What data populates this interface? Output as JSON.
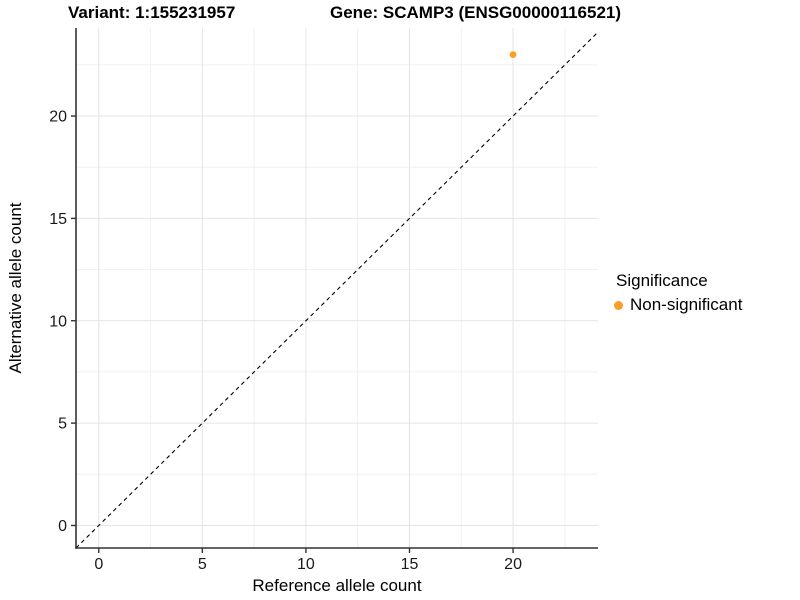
{
  "chart_data": {
    "type": "scatter",
    "title_left": "Variant: 1:155231957",
    "title_right": "Gene: SCAMP3 (ENSG00000116521)",
    "xlabel": "Reference allele count",
    "ylabel": "Alternative allele count",
    "x_ticks": [
      0,
      5,
      10,
      15,
      20
    ],
    "y_ticks": [
      0,
      5,
      10,
      15,
      20
    ],
    "minor_ticks": [
      2.5,
      7.5,
      12.5,
      17.5,
      22.5
    ],
    "xlim": [
      -1.1,
      24.1
    ],
    "ylim": [
      -1.1,
      24.3
    ],
    "grid": true,
    "points": [
      {
        "x": 20,
        "y": 23,
        "series": "Non-significant",
        "color": "#FB9E26"
      }
    ],
    "reference_line": {
      "type": "identity",
      "slope": 1,
      "intercept": 0,
      "style": "dashed",
      "color": "#000000"
    },
    "legend": {
      "title": "Significance",
      "position": "right",
      "entries": [
        {
          "label": "Non-significant",
          "color": "#FB9E26"
        }
      ]
    },
    "colors": {
      "background": "#FFFFFF",
      "grid_major": "#E4E4E4",
      "grid_minor": "#F0F0F0",
      "axis": "#333333",
      "tick_label": "#1A1A1A"
    }
  }
}
